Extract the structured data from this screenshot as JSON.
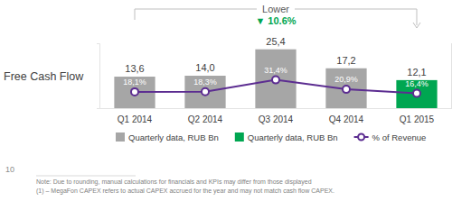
{
  "chart_data": {
    "type": "bar",
    "title": "Free Cash Flow",
    "categories": [
      "Q1 2014",
      "Q2 2014",
      "Q3 2014",
      "Q4 2014",
      "Q1 2015"
    ],
    "series": [
      {
        "name": "Quarterly data, RUB Bn",
        "type": "bar",
        "color": "#a6a6a6",
        "values": [
          13.6,
          14.0,
          25.4,
          17.2,
          null
        ],
        "value_labels": [
          "13,6",
          "14,0",
          "25,4",
          "17,2",
          null
        ]
      },
      {
        "name": "Quarterly data, RUB Bn",
        "type": "bar",
        "color": "#00a651",
        "values": [
          null,
          null,
          null,
          null,
          12.1
        ],
        "value_labels": [
          null,
          null,
          null,
          null,
          "12,1"
        ]
      },
      {
        "name": "% of Revenue",
        "type": "line",
        "axis": "y2",
        "color": "#5c2d91",
        "marker": "circle",
        "values": [
          18.1,
          18.3,
          31.4,
          20.9,
          16.4
        ],
        "value_labels": [
          "18,1%",
          "18,3%",
          "31,4%",
          "20,9%",
          "16,4%"
        ]
      }
    ],
    "stacked": true,
    "ylim": [
      0,
      28
    ],
    "yticks": [
      0,
      28
    ],
    "y2lim": [
      0,
      72
    ],
    "y2ticks": [
      0,
      72
    ],
    "tick_labels": "x",
    "data_labels": true,
    "legend": "bottom",
    "annotations": [
      {
        "text": "Lower"
      },
      {
        "text": "▼ 10.6%",
        "color": "#00a651"
      }
    ],
    "footnotes": [
      "Note: Due to rounding, manual calculations for financials and KPIs may differ from those displayed",
      "(1) – MegaFon CAPEX refers to actual CAPEX accrued for the year and may not match cash flow CAPEX."
    ],
    "page_number": "10"
  }
}
